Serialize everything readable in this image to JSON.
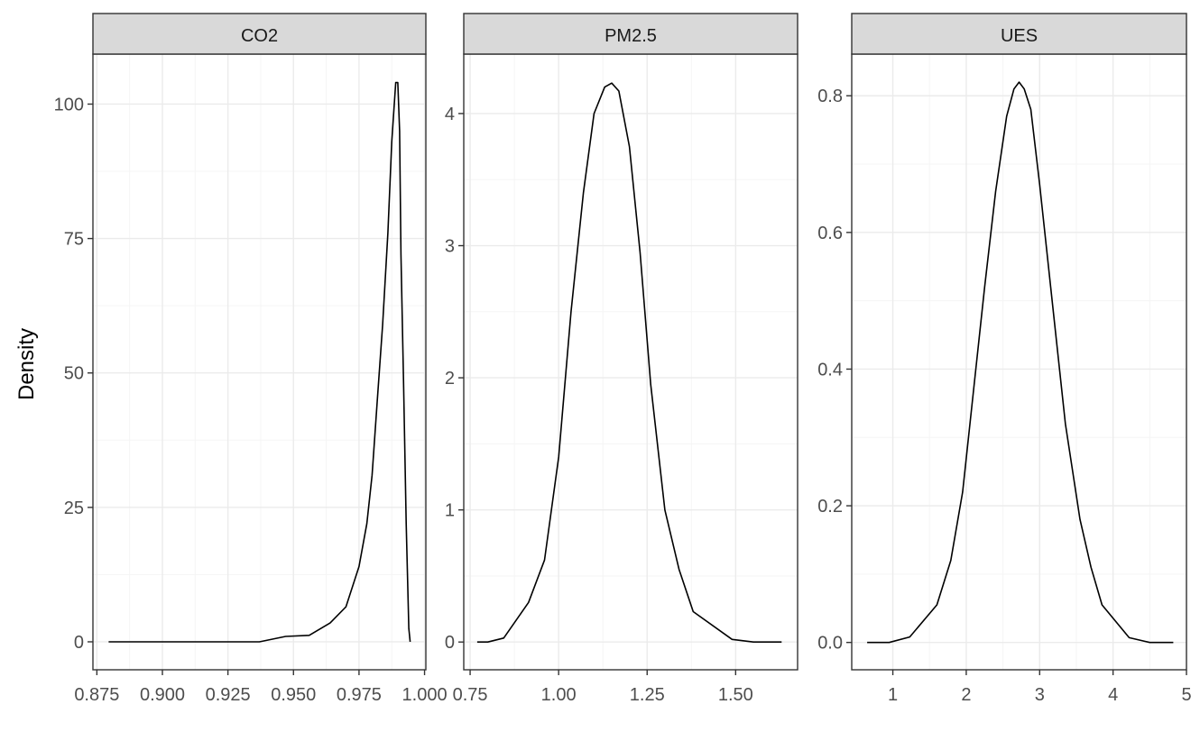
{
  "chart_data": {
    "type": "line",
    "ylabel": "Density",
    "xlabel": "",
    "grid": true,
    "colors": {
      "line": "#000000",
      "strip_fill": "#d9d9d9",
      "panel_border": "#333333",
      "grid_major": "#ebebeb",
      "grid_minor": "#f5f5f5",
      "tick_text": "#4d4d4d"
    },
    "panels": [
      {
        "title": "CO2",
        "xlim": [
          0.8735,
          1.0005
        ],
        "ylim": [
          -5.2,
          109.3
        ],
        "xticks": [
          0.875,
          0.9,
          0.925,
          0.95,
          0.975,
          1.0
        ],
        "xtick_labels": [
          "0.875",
          "0.900",
          "0.925",
          "0.950",
          "0.975",
          "1.000"
        ],
        "yticks": [
          0,
          25,
          50,
          75,
          100
        ],
        "ytick_labels": [
          "0",
          "25",
          "50",
          "75",
          "100"
        ],
        "x": [
          0.8795,
          0.9,
          0.92,
          0.937,
          0.947,
          0.956,
          0.964,
          0.97,
          0.975,
          0.978,
          0.98,
          0.982,
          0.984,
          0.986,
          0.9875,
          0.989,
          0.9898,
          0.9905,
          0.991,
          0.992,
          0.993,
          0.994,
          0.9945
        ],
        "y": [
          0,
          0,
          0,
          0,
          1,
          1.2,
          3.5,
          6.5,
          14,
          22,
          31,
          45,
          59,
          76,
          93,
          104,
          104,
          95,
          72,
          48,
          22,
          2.5,
          0
        ]
      },
      {
        "title": "PM2.5",
        "xlim": [
          0.732,
          1.675
        ],
        "ylim": [
          -0.21,
          4.45
        ],
        "xticks": [
          0.75,
          1.0,
          1.25,
          1.5
        ],
        "xtick_labels": [
          "0.75",
          "1.00",
          "1.25",
          "1.50"
        ],
        "yticks": [
          0,
          1,
          2,
          3,
          4
        ],
        "ytick_labels": [
          "0",
          "1",
          "2",
          "3",
          "4"
        ],
        "x": [
          0.77,
          0.8,
          0.845,
          0.915,
          0.96,
          1.0,
          1.035,
          1.07,
          1.1,
          1.13,
          1.15,
          1.17,
          1.2,
          1.23,
          1.26,
          1.3,
          1.34,
          1.38,
          1.49,
          1.55,
          1.63
        ],
        "y": [
          0,
          0,
          0.03,
          0.3,
          0.62,
          1.4,
          2.5,
          3.4,
          4.0,
          4.2,
          4.23,
          4.17,
          3.75,
          2.95,
          1.95,
          1.0,
          0.55,
          0.23,
          0.02,
          0,
          0
        ]
      },
      {
        "title": "UES",
        "xlim": [
          0.44,
          5.0
        ],
        "ylim": [
          -0.04,
          0.861
        ],
        "xticks": [
          1,
          2,
          3,
          4,
          5
        ],
        "xtick_labels": [
          "1",
          "2",
          "3",
          "4",
          "5"
        ],
        "yticks": [
          0.0,
          0.2,
          0.4,
          0.6,
          0.8
        ],
        "ytick_labels": [
          "0.0",
          "0.2",
          "0.4",
          "0.6",
          "0.8"
        ],
        "x": [
          0.65,
          0.95,
          1.23,
          1.6,
          1.79,
          1.95,
          2.1,
          2.25,
          2.4,
          2.55,
          2.65,
          2.72,
          2.79,
          2.88,
          3.0,
          3.15,
          3.35,
          3.55,
          3.7,
          3.85,
          4.22,
          4.5,
          4.82
        ],
        "y": [
          0,
          0,
          0.008,
          0.055,
          0.12,
          0.22,
          0.37,
          0.52,
          0.66,
          0.77,
          0.81,
          0.82,
          0.81,
          0.78,
          0.67,
          0.52,
          0.32,
          0.18,
          0.11,
          0.055,
          0.007,
          0,
          0
        ]
      }
    ]
  }
}
